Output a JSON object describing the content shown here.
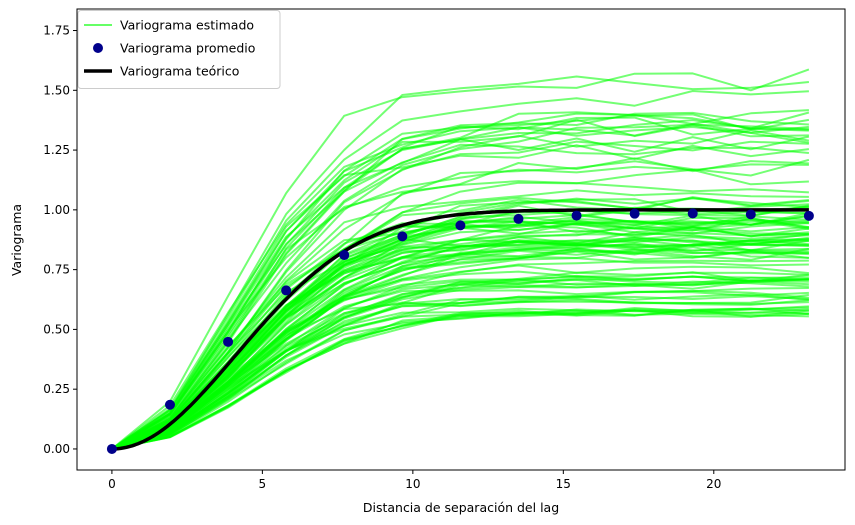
{
  "chart_data": {
    "type": "line",
    "title": "",
    "xlabel": "Distancia de separación del lag",
    "ylabel": "Variograma",
    "xlim": [
      -1.16,
      24.36
    ],
    "ylim": [
      -0.088,
      1.84
    ],
    "xticks": [
      0,
      5,
      10,
      15,
      20
    ],
    "xtick_labels": [
      "0",
      "5",
      "10",
      "15",
      "20"
    ],
    "yticks": [
      0,
      0.25,
      0.5,
      0.75,
      1.0,
      1.25,
      1.5,
      1.75
    ],
    "ytick_labels": [
      "0.00",
      "0.25",
      "0.50",
      "0.75",
      "1.00",
      "1.25",
      "1.50",
      "1.75"
    ],
    "grid": false,
    "legend": {
      "position": "top-left",
      "entries": [
        {
          "label": "Variograma estimado",
          "kind": "line",
          "color": "#66ff66"
        },
        {
          "label": "Variograma promedio",
          "kind": "marker",
          "color": "#00008b"
        },
        {
          "label": "Variograma teórico",
          "kind": "line",
          "color": "#000000"
        }
      ]
    },
    "x": [
      0,
      1.93,
      3.86,
      5.79,
      7.72,
      9.65,
      11.58,
      13.51,
      15.44,
      17.37,
      19.3,
      21.23,
      23.16
    ],
    "estimated_series": {
      "name": "Variograma estimado",
      "color": "#00ff00",
      "opacity": 0.55,
      "count": 100,
      "plateau_min": 0.56,
      "plateau_max": 1.6
    },
    "average_series": {
      "name": "Variograma promedio",
      "color": "#00008b",
      "values": [
        0.0,
        0.185,
        0.448,
        0.663,
        0.811,
        0.889,
        0.935,
        0.962,
        0.976,
        0.984,
        0.985,
        0.981,
        0.975
      ]
    },
    "theoretical_series": {
      "name": "Variograma teórico",
      "color": "#000000",
      "model": "gaussian",
      "sill": 1.0,
      "range": 10.1
    }
  }
}
